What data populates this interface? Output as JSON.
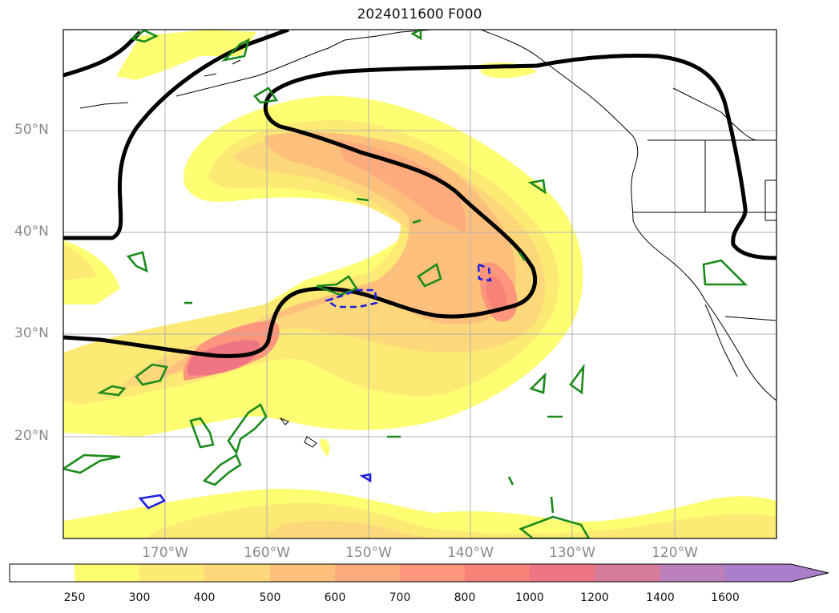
{
  "title": "2024011600 F000",
  "lat_labels": [
    "50°N",
    "40°N",
    "30°N",
    "20°N"
  ],
  "lon_labels": [
    "170°W",
    "160°W",
    "150°W",
    "140°W",
    "130°W",
    "120°W"
  ],
  "colorbar": {
    "ticks": [
      "250",
      "300",
      "400",
      "500",
      "600",
      "700",
      "800",
      "1000",
      "1200",
      "1400",
      "1600"
    ],
    "colors": [
      "#ffffff",
      "#fefe72",
      "#fdea74",
      "#fdd87a",
      "#fdc07c",
      "#fdaa7c",
      "#fd967c",
      "#f98278",
      "#ef7584",
      "#d67a9a",
      "#bb7fbb",
      "#a97fcb"
    ],
    "extend": "max"
  },
  "layers": {
    "fill": "shaded magnitude field (yellow → red)",
    "black_contour": "thick black contour",
    "green_contours": "green contours",
    "blue_contours": "blue contours (solid and dashed)"
  }
}
